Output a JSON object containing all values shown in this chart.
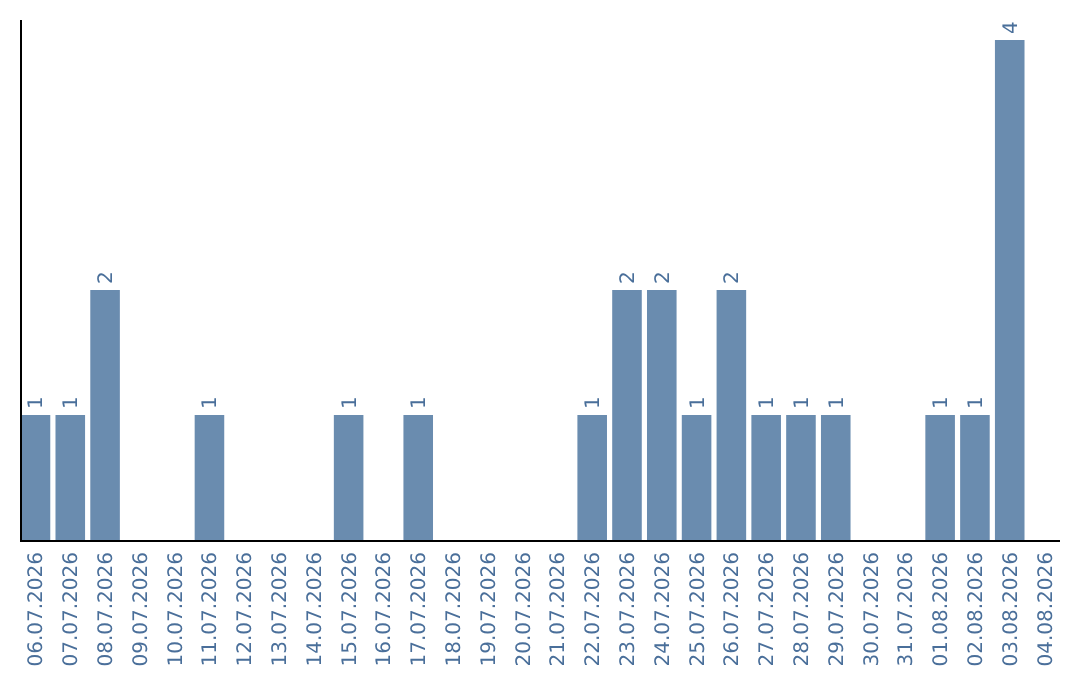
{
  "chart_data": {
    "type": "bar",
    "categories": [
      "06.07.2026",
      "07.07.2026",
      "08.07.2026",
      "09.07.2026",
      "10.07.2026",
      "11.07.2026",
      "12.07.2026",
      "13.07.2026",
      "14.07.2026",
      "15.07.2026",
      "16.07.2026",
      "17.07.2026",
      "18.07.2026",
      "19.07.2026",
      "20.07.2026",
      "21.07.2026",
      "22.07.2026",
      "23.07.2026",
      "24.07.2026",
      "25.07.2026",
      "26.07.2026",
      "27.07.2026",
      "28.07.2026",
      "29.07.2026",
      "30.07.2026",
      "31.07.2026",
      "01.08.2026",
      "02.08.2026",
      "03.08.2026",
      "04.08.2026"
    ],
    "values": [
      1,
      1,
      2,
      null,
      null,
      1,
      null,
      null,
      null,
      1,
      null,
      1,
      null,
      null,
      null,
      null,
      1,
      2,
      2,
      1,
      2,
      1,
      1,
      1,
      null,
      null,
      1,
      1,
      4,
      null
    ],
    "color": "#6a8caf",
    "data_labels": true,
    "tick_labels": "x"
  }
}
